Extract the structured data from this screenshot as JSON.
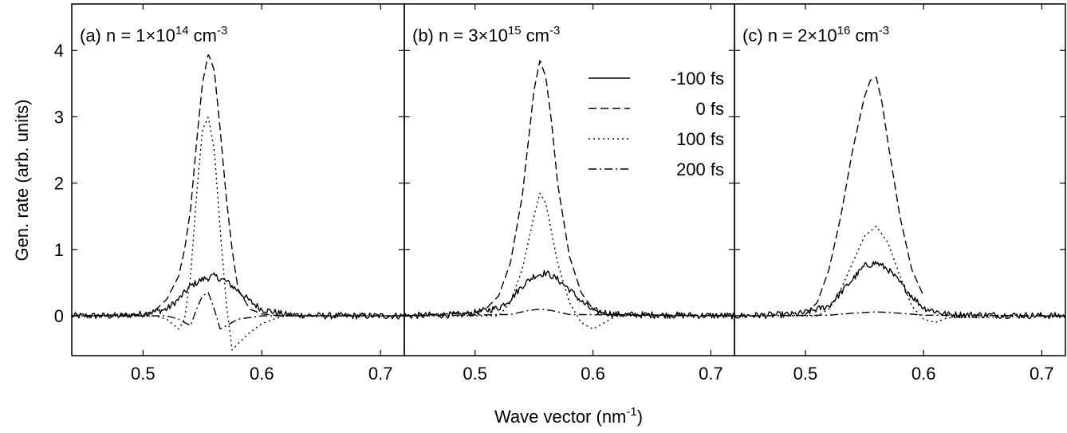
{
  "chart_data": {
    "type": "line",
    "xlabel": "Wave vector (nm",
    "xlabel_sup": "-1",
    "xlabel_end": ")",
    "ylabel": "Gen. rate (arb. units)",
    "xlim": [
      0.44,
      0.72
    ],
    "ylim": [
      -0.6,
      4.7
    ],
    "x_ticks": [
      0.5,
      0.6,
      0.7
    ],
    "x_tick_labels": [
      "0.5",
      "0.6",
      "0.7"
    ],
    "y_ticks": [
      0,
      1,
      2,
      3,
      4
    ],
    "y_tick_labels": [
      "0",
      "1",
      "2",
      "3",
      "4"
    ],
    "grid": false,
    "legend_placement": "top-right of panel (b)",
    "series_styles": [
      {
        "name": "-100 fs",
        "dash": "solid"
      },
      {
        "name": "0 fs",
        "dash": "dashed"
      },
      {
        "name": "100 fs",
        "dash": "dotted"
      },
      {
        "name": "200 fs",
        "dash": "dashdot"
      }
    ],
    "panels": [
      {
        "label": "(a) n = 1×10",
        "label_sup": "14",
        "label_unit": " cm",
        "label_unit_sup": "-3",
        "series": [
          {
            "name": "-100 fs",
            "x": [
              0.44,
              0.48,
              0.5,
              0.52,
              0.53,
              0.54,
              0.55,
              0.56,
              0.57,
              0.58,
              0.59,
              0.6,
              0.62,
              0.65,
              0.72
            ],
            "y": [
              0,
              0,
              0.03,
              0.1,
              0.25,
              0.45,
              0.55,
              0.6,
              0.52,
              0.38,
              0.22,
              0.1,
              0.02,
              0,
              0
            ]
          },
          {
            "name": "0 fs",
            "x": [
              0.44,
              0.5,
              0.51,
              0.52,
              0.53,
              0.535,
              0.54,
              0.545,
              0.55,
              0.555,
              0.56,
              0.565,
              0.57,
              0.575,
              0.58,
              0.59,
              0.6,
              0.61,
              0.62,
              0.72
            ],
            "y": [
              0,
              0.02,
              0.08,
              0.25,
              0.6,
              1.0,
              1.6,
              2.6,
              3.5,
              3.95,
              3.7,
              2.8,
              1.8,
              1.0,
              0.4,
              0.1,
              0.03,
              0.01,
              0,
              0
            ]
          },
          {
            "name": "100 fs",
            "x": [
              0.44,
              0.51,
              0.52,
              0.53,
              0.535,
              0.54,
              0.545,
              0.55,
              0.555,
              0.56,
              0.565,
              0.57,
              0.575,
              0.58,
              0.59,
              0.6,
              0.61,
              0.62,
              0.72
            ],
            "y": [
              0,
              0,
              -0.05,
              -0.2,
              -0.05,
              0.6,
              1.8,
              2.8,
              3.0,
              2.5,
              1.3,
              0.2,
              -0.52,
              -0.42,
              -0.25,
              -0.12,
              -0.05,
              0,
              0
            ]
          },
          {
            "name": "200 fs",
            "x": [
              0.44,
              0.52,
              0.53,
              0.54,
              0.545,
              0.55,
              0.555,
              0.56,
              0.565,
              0.57,
              0.58,
              0.6,
              0.72
            ],
            "y": [
              0,
              0,
              -0.05,
              -0.15,
              0.1,
              0.3,
              0.35,
              0.1,
              -0.2,
              -0.15,
              -0.05,
              0,
              0
            ]
          }
        ]
      },
      {
        "label": "(b) n = 3×10",
        "label_sup": "15",
        "label_unit": " cm",
        "label_unit_sup": "-3",
        "series": [
          {
            "name": "-100 fs",
            "x": [
              0.44,
              0.49,
              0.5,
              0.52,
              0.53,
              0.54,
              0.55,
              0.56,
              0.57,
              0.58,
              0.59,
              0.6,
              0.62,
              0.72
            ],
            "y": [
              0,
              0.02,
              0.05,
              0.12,
              0.25,
              0.45,
              0.6,
              0.65,
              0.55,
              0.4,
              0.22,
              0.08,
              0.02,
              0
            ]
          },
          {
            "name": "0 fs",
            "x": [
              0.44,
              0.5,
              0.51,
              0.52,
              0.53,
              0.54,
              0.545,
              0.55,
              0.555,
              0.56,
              0.565,
              0.57,
              0.58,
              0.59,
              0.6,
              0.61,
              0.72
            ],
            "y": [
              0,
              0.05,
              0.12,
              0.3,
              0.8,
              1.8,
              2.6,
              3.4,
              3.85,
              3.6,
              2.9,
              2.0,
              0.9,
              0.35,
              0.1,
              0.02,
              0
            ]
          },
          {
            "name": "100 fs",
            "x": [
              0.44,
              0.52,
              0.53,
              0.54,
              0.55,
              0.555,
              0.56,
              0.57,
              0.58,
              0.59,
              0.6,
              0.61,
              0.62,
              0.72
            ],
            "y": [
              0,
              0,
              0.2,
              0.7,
              1.5,
              1.85,
              1.7,
              0.8,
              0.2,
              -0.1,
              -0.2,
              -0.1,
              0,
              0
            ]
          },
          {
            "name": "200 fs",
            "x": [
              0.44,
              0.53,
              0.545,
              0.555,
              0.565,
              0.58,
              0.72
            ],
            "y": [
              0,
              0.02,
              0.08,
              0.1,
              0.08,
              0.02,
              0
            ]
          }
        ]
      },
      {
        "label": "(c) n = 2×10",
        "label_sup": "16",
        "label_unit": " cm",
        "label_unit_sup": "-3",
        "series": [
          {
            "name": "-100 fs",
            "x": [
              0.44,
              0.49,
              0.5,
              0.52,
              0.53,
              0.54,
              0.55,
              0.56,
              0.57,
              0.58,
              0.59,
              0.6,
              0.62,
              0.72
            ],
            "y": [
              0,
              0.02,
              0.05,
              0.15,
              0.35,
              0.55,
              0.75,
              0.8,
              0.7,
              0.5,
              0.3,
              0.12,
              0.02,
              0
            ]
          },
          {
            "name": "0 fs",
            "x": [
              0.5,
              0.51,
              0.52,
              0.53,
              0.54,
              0.55,
              0.555,
              0.56,
              0.565,
              0.57,
              0.58,
              0.59,
              0.6
            ],
            "y": [
              0.02,
              0.2,
              0.7,
              1.5,
              2.5,
              3.3,
              3.55,
              3.6,
              3.2,
              2.6,
              1.5,
              0.7,
              0.3
            ]
          },
          {
            "name": "100 fs",
            "x": [
              0.44,
              0.51,
              0.52,
              0.53,
              0.54,
              0.55,
              0.56,
              0.57,
              0.58,
              0.59,
              0.6,
              0.61,
              0.62,
              0.72
            ],
            "y": [
              0,
              0,
              0.1,
              0.4,
              0.8,
              1.2,
              1.35,
              1.1,
              0.6,
              0.15,
              -0.05,
              -0.1,
              -0.03,
              0
            ]
          },
          {
            "name": "200 fs",
            "x": [
              0.44,
              0.52,
              0.54,
              0.56,
              0.58,
              0.6,
              0.72
            ],
            "y": [
              0,
              0.01,
              0.04,
              0.06,
              0.04,
              0.01,
              0
            ]
          }
        ]
      }
    ]
  }
}
